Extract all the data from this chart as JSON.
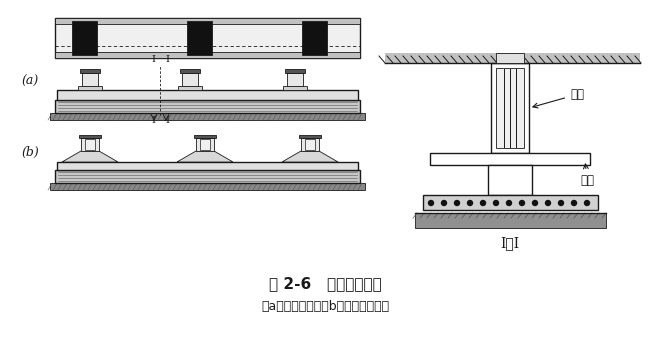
{
  "bg_color": "#ffffff",
  "line_color": "#1a1a1a",
  "fill_dark": "#111111",
  "fill_gray": "#808080",
  "fill_light": "#d8d8d8",
  "title": "图 2-6   柱下条形基础",
  "subtitle": "（a）等截面的；（b）柱位处加腋的",
  "label_a": "(a)",
  "label_b": "(b)",
  "label_section": "I－I",
  "label_rib": "肋梁",
  "label_flange": "翼板"
}
